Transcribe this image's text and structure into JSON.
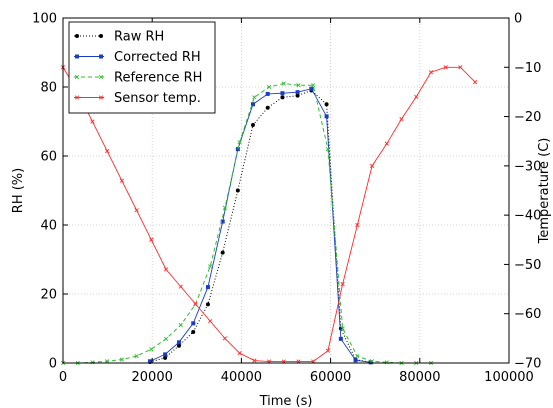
{
  "chart_data": {
    "type": "line",
    "xlabel": "Time (s)",
    "ylabel": "RH (%)",
    "y2label": "Temperature (C)",
    "xlim": [
      0,
      100000
    ],
    "ylim": [
      0,
      100
    ],
    "y2lim": [
      -70,
      0
    ],
    "xticks": [
      0,
      20000,
      40000,
      60000,
      80000,
      100000
    ],
    "yticks": [
      0,
      20,
      40,
      60,
      80,
      100
    ],
    "y2ticks": [
      0,
      -10,
      -20,
      -30,
      -40,
      -50,
      -60,
      -70
    ],
    "grid": true,
    "legend_position": "top-left",
    "series": [
      {
        "name": "Raw RH",
        "axis": "left",
        "color": "#000000",
        "line_style": "dotted",
        "marker": "dot",
        "x": [
          19500,
          22900,
          26000,
          29200,
          32500,
          35800,
          39200,
          42600,
          45900,
          49200,
          52600,
          55700,
          59100,
          62300,
          65600,
          69000
        ],
        "y": [
          0.3,
          1.5,
          5,
          9,
          17,
          32,
          50,
          69,
          74,
          77,
          77.5,
          79,
          75,
          10,
          1,
          0.2
        ]
      },
      {
        "name": "Corrected RH",
        "axis": "left",
        "color": "#1a3cc8",
        "line_style": "solid",
        "marker": "square",
        "x": [
          19500,
          22900,
          26000,
          29200,
          32500,
          35800,
          39200,
          42600,
          45900,
          49200,
          52600,
          55700,
          59100,
          62300,
          65600,
          69000
        ],
        "y": [
          0.5,
          2.5,
          6,
          11.5,
          22,
          41,
          62,
          75,
          78,
          78.2,
          78.5,
          79.5,
          71.5,
          7,
          0.8,
          0.2
        ]
      },
      {
        "name": "Reference RH",
        "axis": "left",
        "color": "#33bb33",
        "line_style": "dashed",
        "marker": "x",
        "x": [
          0,
          3300,
          6600,
          9900,
          13200,
          16500,
          19800,
          23100,
          26400,
          29700,
          33000,
          36300,
          39600,
          42900,
          46200,
          49500,
          52800,
          56100,
          59400,
          62700,
          66000,
          69300,
          72600,
          75900,
          79200,
          82500
        ],
        "y": [
          0,
          0,
          0.2,
          0.5,
          1,
          2,
          4,
          7,
          11,
          17,
          28,
          45,
          64,
          77,
          80,
          81,
          80.5,
          80.5,
          62,
          10,
          2,
          0.5,
          0.2,
          0,
          0,
          0
        ]
      },
      {
        "name": "Sensor temp.",
        "axis": "right",
        "color": "#ff2a2a",
        "line_style": "solid",
        "marker": "x",
        "x": [
          0,
          3300,
          6600,
          9900,
          13200,
          16500,
          19800,
          23100,
          26400,
          29700,
          33000,
          36300,
          39600,
          42900,
          46200,
          49500,
          52800,
          56100,
          59400,
          62700,
          66000,
          69300,
          72600,
          75900,
          79200,
          82500,
          85800,
          89100,
          92400
        ],
        "y": [
          -10,
          -15,
          -21,
          -27,
          -33,
          -39,
          -45,
          -51,
          -54.5,
          -58,
          -61.5,
          -65,
          -68,
          -69.5,
          -69.7,
          -69.7,
          -69.7,
          -69.7,
          -67.5,
          -54,
          -42,
          -30,
          -25.5,
          -20.5,
          -16,
          -11,
          -10,
          -10,
          -13
        ]
      }
    ]
  }
}
